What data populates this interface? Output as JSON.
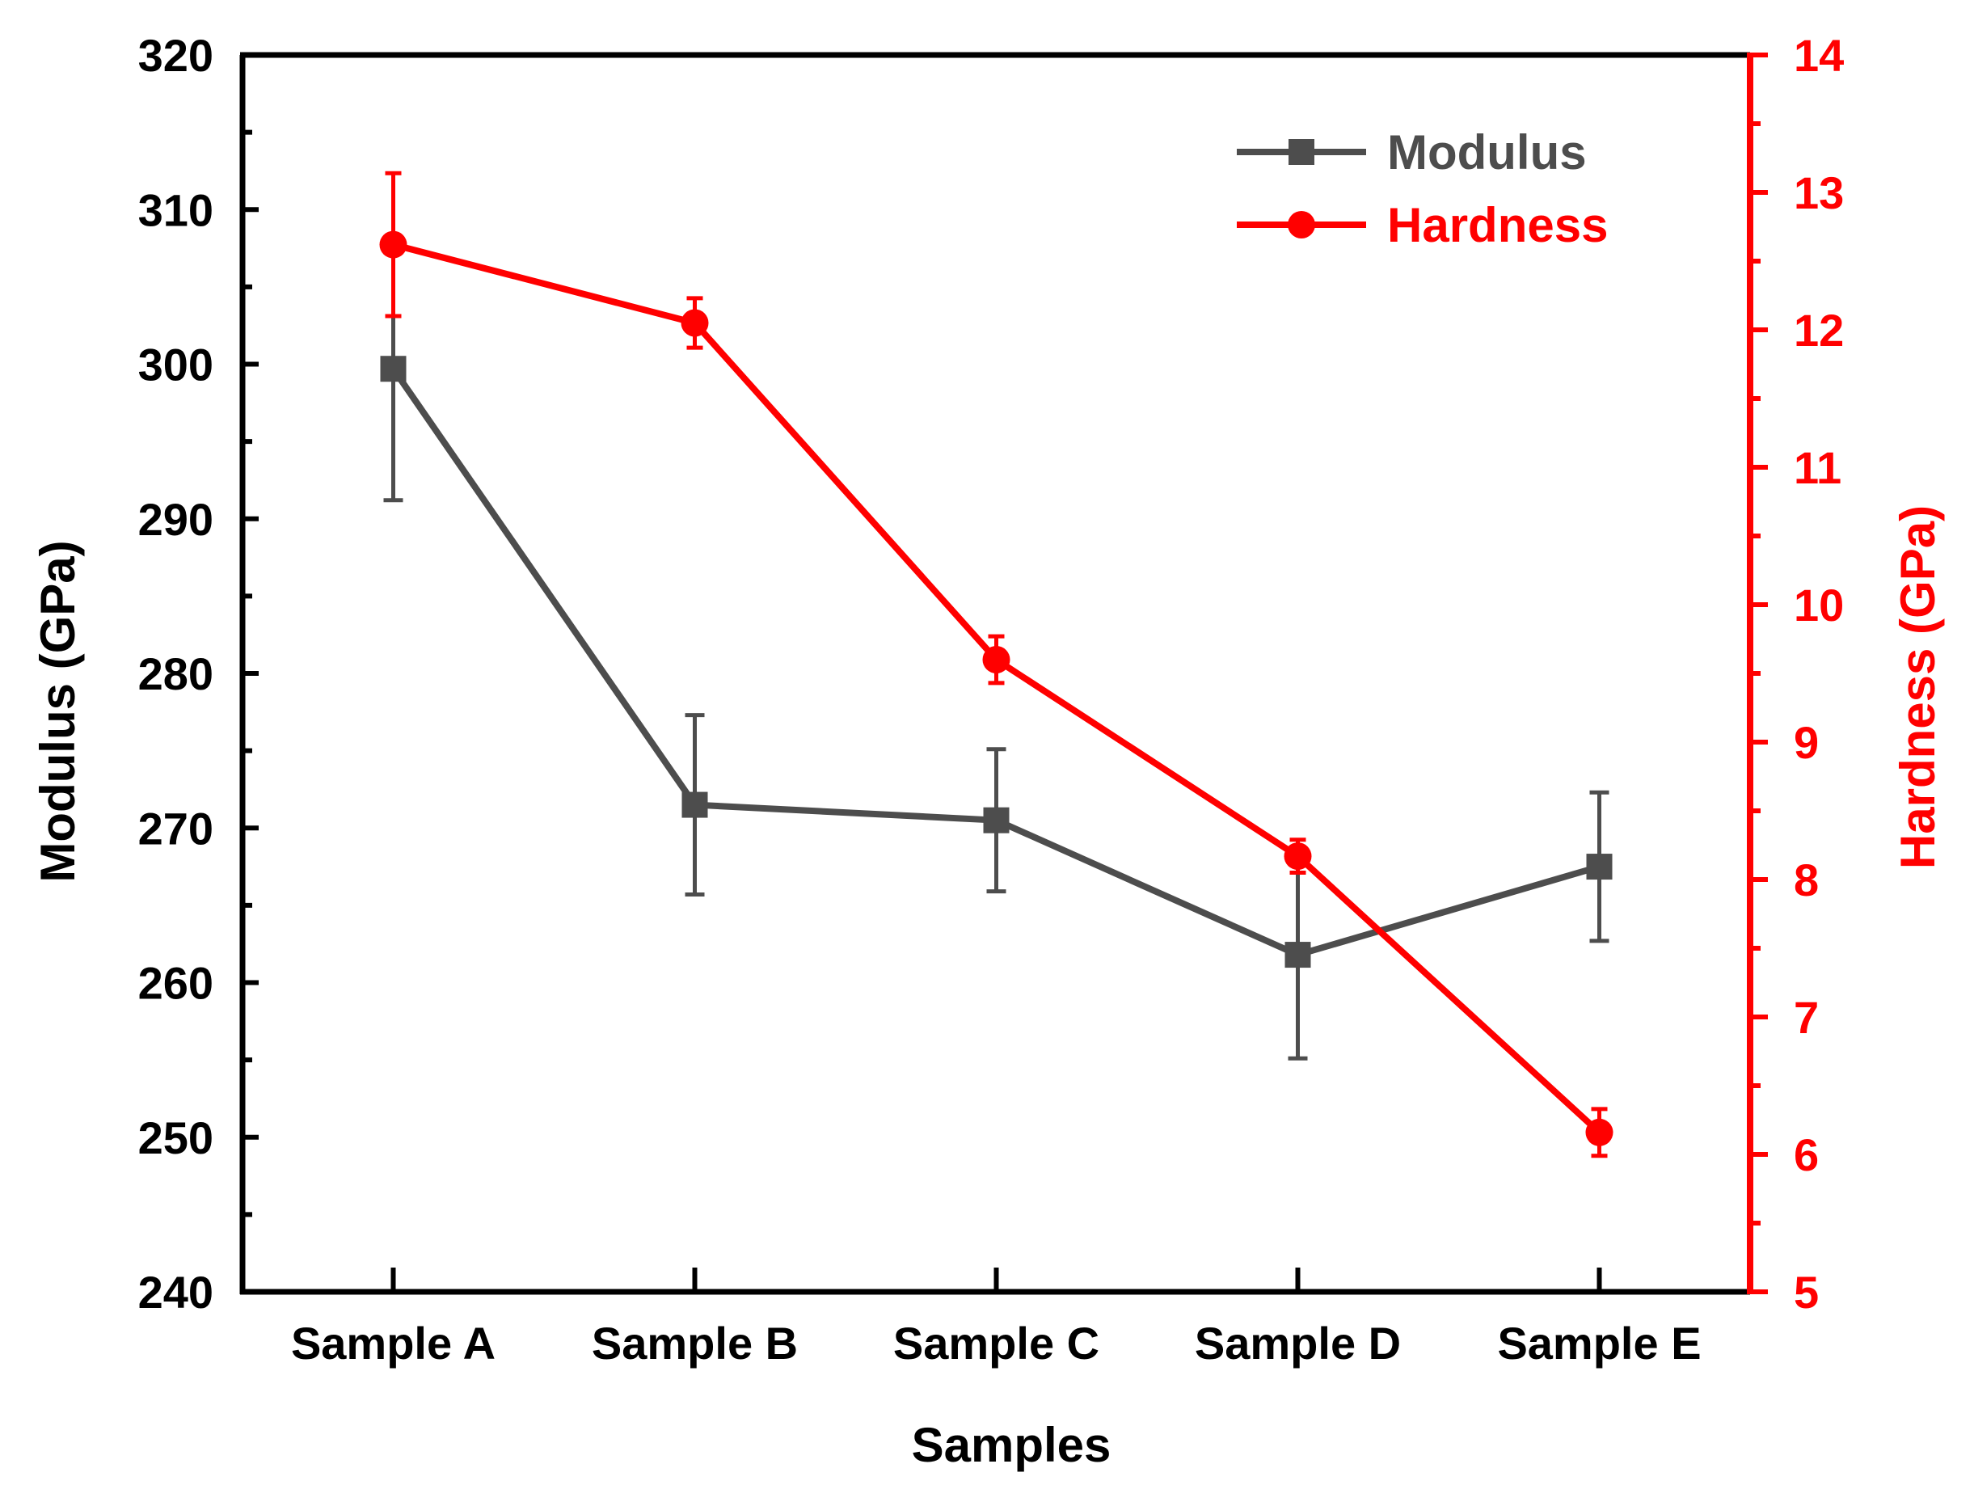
{
  "chart_data": {
    "type": "line",
    "title": "",
    "xlabel": "Samples",
    "ylabel": "Modulus (GPa)",
    "y2label": "Hardness (GPa)",
    "categories": [
      "Sample A",
      "Sample B",
      "Sample C",
      "Sample D",
      "Sample E"
    ],
    "ylim": [
      240,
      320
    ],
    "y2lim": [
      5,
      14
    ],
    "yticks": [
      240,
      250,
      260,
      270,
      280,
      290,
      300,
      310,
      320
    ],
    "y2ticks": [
      5,
      6,
      7,
      8,
      9,
      10,
      11,
      12,
      13,
      14
    ],
    "grid": false,
    "legend_position": "top-right",
    "series": [
      {
        "name": "Modulus",
        "axis": "left",
        "marker": "square",
        "color": "#4d4d4d",
        "values": [
          299.7,
          271.5,
          270.5,
          261.8,
          267.5
        ],
        "errors": [
          8.5,
          5.8,
          4.6,
          6.7,
          4.8
        ]
      },
      {
        "name": "Hardness",
        "axis": "right",
        "marker": "circle",
        "color": "#ff0000",
        "values": [
          12.62,
          12.05,
          9.6,
          8.17,
          6.16
        ],
        "errors": [
          0.52,
          0.18,
          0.17,
          0.12,
          0.17
        ]
      }
    ]
  },
  "colors": {
    "axis": "#000000",
    "right_axis": "#ff0000"
  }
}
